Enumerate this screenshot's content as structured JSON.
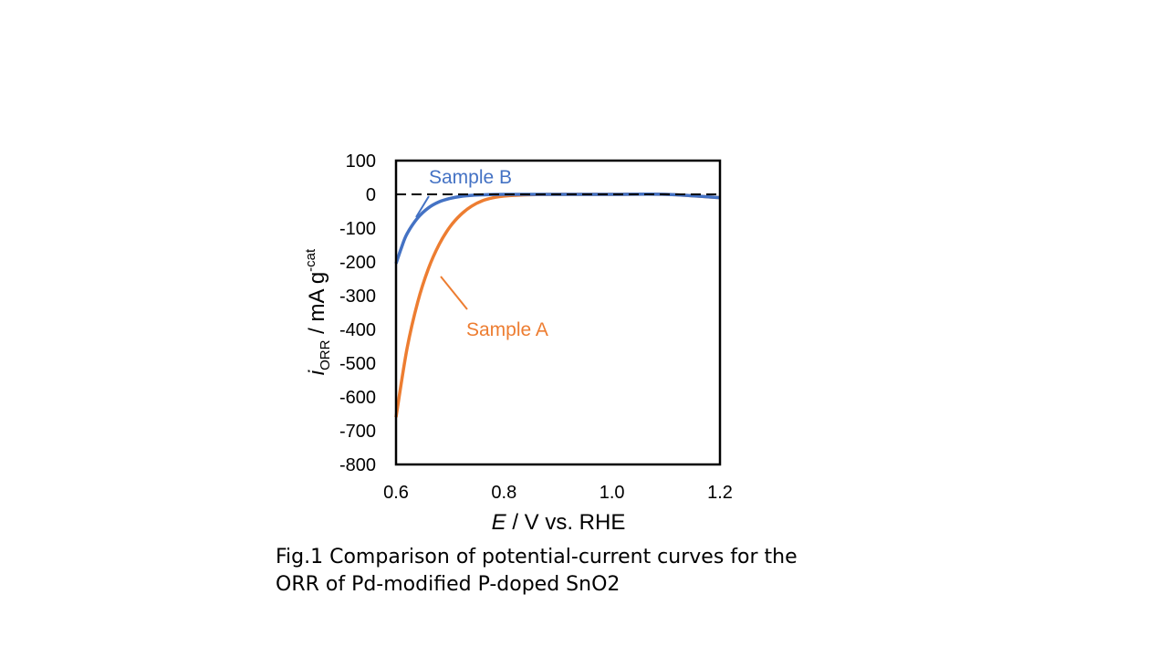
{
  "chart_data": {
    "type": "line",
    "xlabel": {
      "italic": "E",
      "rest": " / V vs. RHE"
    },
    "ylabel": {
      "italic": "i",
      "sub": "ORR",
      "rest": " / mA g",
      "sup": "-cat"
    },
    "xlim": [
      0.6,
      1.2
    ],
    "ylim": [
      -800,
      100
    ],
    "xticks": [
      "0.6",
      "0.8",
      "1.0",
      "1.2"
    ],
    "yticks": [
      "100",
      "0",
      "-100",
      "-200",
      "-300",
      "-400",
      "-500",
      "-600",
      "-700",
      "-800"
    ],
    "grid": false,
    "series": [
      {
        "name": "Sample A",
        "color": "#ED7D31",
        "x": [
          0.6,
          0.62,
          0.64,
          0.66,
          0.68,
          0.7,
          0.72,
          0.74,
          0.76,
          0.78,
          0.8,
          0.85,
          0.9,
          1.0,
          1.1,
          1.2
        ],
        "y": [
          -660,
          -460,
          -320,
          -220,
          -148,
          -96,
          -60,
          -35,
          -19,
          -10,
          -5,
          -1,
          0,
          0,
          0,
          -10
        ]
      },
      {
        "name": "Sample B",
        "color": "#4472C4",
        "x": [
          0.6,
          0.61,
          0.62,
          0.64,
          0.66,
          0.68,
          0.7,
          0.72,
          0.74,
          0.76,
          0.8,
          0.9,
          1.0,
          1.1,
          1.2
        ],
        "y": [
          -205,
          -158,
          -118,
          -70,
          -40,
          -22,
          -12,
          -6,
          -3,
          -1.5,
          0,
          0,
          0,
          0,
          -10
        ]
      }
    ],
    "reference_line": {
      "y": 0,
      "style": "dashed",
      "color": "#000000"
    },
    "annotations": [
      "Sample B",
      "Sample A"
    ]
  },
  "caption": {
    "line1": "Fig.1 Comparison of potential-current curves for the",
    "line2": "ORR of Pd-modified P-doped SnO2"
  }
}
